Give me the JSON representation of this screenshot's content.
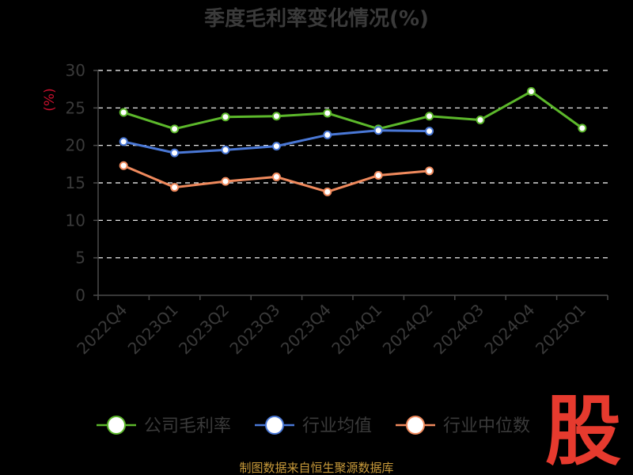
{
  "chart_data": {
    "type": "line",
    "title": "季度毛利率变化情况(%)",
    "ylabel": "(%)",
    "xlabel": "",
    "ylim": [
      0,
      30
    ],
    "yticks": [
      0,
      5,
      10,
      15,
      20,
      25,
      30
    ],
    "categories": [
      "2022Q4",
      "2023Q1",
      "2023Q2",
      "2023Q3",
      "2023Q4",
      "2024Q1",
      "2024Q2",
      "2024Q3",
      "2024Q4",
      "2025Q1"
    ],
    "grid": true,
    "legend_position": "bottom",
    "series": [
      {
        "name": "公司毛利率",
        "color": "#5cb82b",
        "values": [
          24.4,
          22.2,
          23.8,
          23.9,
          24.3,
          22.2,
          23.9,
          23.4,
          27.2,
          22.3
        ]
      },
      {
        "name": "行业均值",
        "color": "#4a78d6",
        "values": [
          20.5,
          19.0,
          19.4,
          19.9,
          21.4,
          22.0,
          21.9,
          null,
          null,
          null
        ]
      },
      {
        "name": "行业中位数",
        "color": "#f08a5d",
        "values": [
          17.3,
          14.4,
          15.2,
          15.8,
          13.8,
          16.0,
          16.6,
          null,
          null,
          null
        ]
      }
    ]
  },
  "footer": {
    "source": "制图数据来自恒生聚源数据库",
    "watermark": "股"
  }
}
